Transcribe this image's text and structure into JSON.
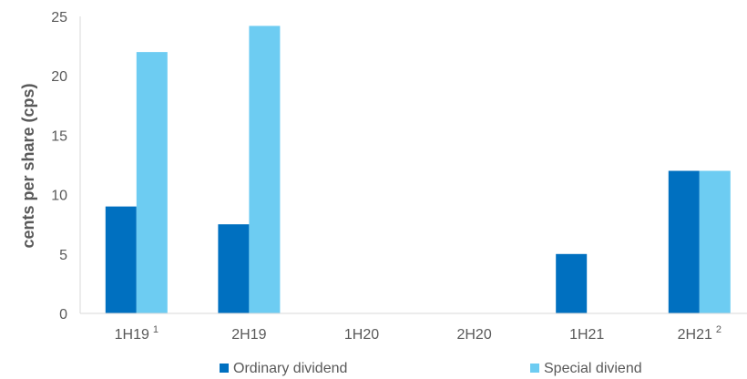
{
  "chart_data": {
    "type": "bar",
    "categories": [
      "1H19",
      "2H19",
      "1H20",
      "2H20",
      "1H21",
      "2H21"
    ],
    "category_footnotes": [
      "1",
      "",
      "",
      "",
      "",
      "2"
    ],
    "series": [
      {
        "name": "Ordinary dividend",
        "values": [
          9,
          7.5,
          0,
          0,
          5,
          12
        ],
        "color": "#0070c0"
      },
      {
        "name": "Special diviend",
        "values": [
          22,
          24.2,
          0,
          0,
          0,
          12
        ],
        "color": "#6dccf2"
      }
    ],
    "ylabel": "cents per share (cps)",
    "xlabel": "",
    "ylim": [
      0,
      25
    ],
    "yticks": [
      0,
      5,
      10,
      15,
      20,
      25
    ],
    "grid": false,
    "legend_position": "bottom"
  }
}
